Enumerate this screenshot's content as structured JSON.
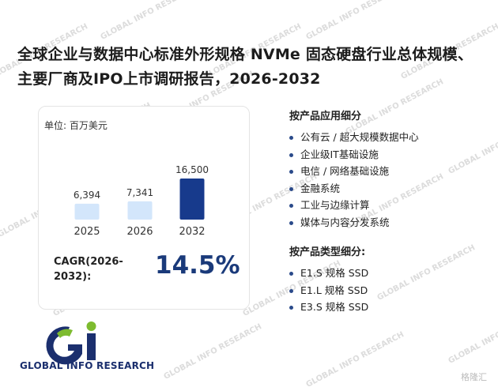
{
  "title": "全球企业与数据中心标准外形规格 NVMe 固态硬盘行业总体规模、主要厂商及IPO上市调研报告，2026-2032",
  "unit_label": "单位: 百万美元",
  "chart_data": {
    "type": "bar",
    "categories": [
      "2025",
      "2026",
      "2032"
    ],
    "values": [
      6394,
      7341,
      16500
    ],
    "value_labels": [
      "6,394",
      "7,341",
      "16,500"
    ],
    "bar_colors": [
      "#d3e6fb",
      "#d3e6fb",
      "#173a8c"
    ],
    "ylim": [
      0,
      16500
    ]
  },
  "cagr": {
    "label": "CAGR(2026-2032):",
    "value": "14.5%"
  },
  "application": {
    "title": "按产品应用细分",
    "items": [
      "公有云 / 超大规模数据中心",
      "企业级IT基础设施",
      "电信 / 网络基础设施",
      "金融系统",
      "工业与边缘计算",
      "媒体与内容分发系统"
    ]
  },
  "product_type": {
    "title": "按产品类型细分:",
    "items": [
      "E1.S 规格 SSD",
      "E1.L 规格 SSD",
      "E3.S 规格 SSD"
    ]
  },
  "logo": {
    "text": "GLOBAL INFO RESEARCH",
    "mark": "Gi"
  },
  "watermark": {
    "text": "GLOBAL INFO RESEARCH",
    "corner": "格隆汇"
  }
}
